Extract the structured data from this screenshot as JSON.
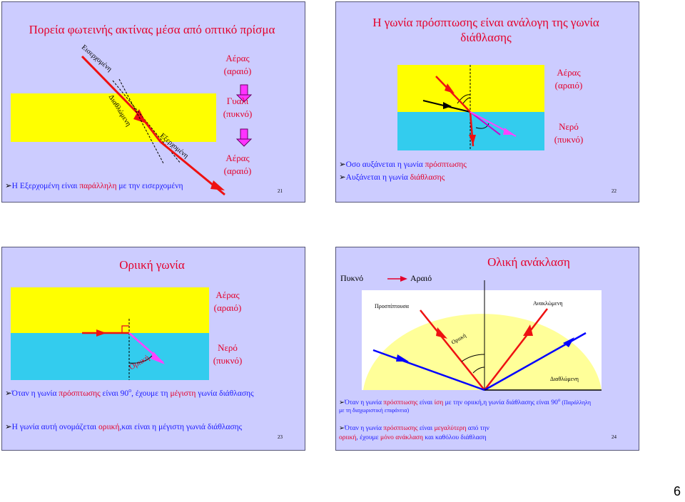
{
  "slide21": {
    "title": "Πορεία φωτεινής ακτίνας μέσα από οπτικό πρίσμα",
    "ray_incoming": "Εισερχομένη",
    "ray_refracted": "Διαθλώμενη",
    "ray_outgoing": "Εξερχομένη",
    "air1_name": "Αέρας",
    "air1_desc": "(αραιό)",
    "glass_name": "Γυαλί",
    "glass_desc": "(πυκνό)",
    "air2_name": "Αέρας",
    "air2_desc": "(αραιό)",
    "bullet_a": "Η Εξερχομένη είναι ",
    "bullet_b": "παράλληλη",
    "bullet_c": " με την εισερχομένη",
    "number": "21"
  },
  "slide22": {
    "title_line1": "Η γωνία πρόσπτωσης είναι ανάλογη της γωνία",
    "title_line2": "διάθλασης",
    "air_name": "Αέρας",
    "air_desc": "(αραιό)",
    "water_name": "Νερό",
    "water_desc": "(πυκνό)",
    "bullet1_a": "Οσο αυξάνεται η γωνία ",
    "bullet1_b": "πρόσπτωσης",
    "bullet2_a": "Αυξάνεται η γωνία ",
    "bullet2_b": "διάθλασης",
    "number": "22"
  },
  "slide23": {
    "title": "Οριική γωνία",
    "air_name": "Αέρας",
    "air_desc": "(αραιό)",
    "water_name": "Νερό",
    "water_desc": "(πυκνό)",
    "angle_label": "Οριική",
    "bullet1_a": "Όταν η γωνία ",
    "bullet1_b": "πρόσπτωσης",
    "bullet1_c": " είναι 90",
    "bullet1_sup": "ο",
    "bullet1_d": ", έχουμε τη ",
    "bullet1_e": "μέγιστη",
    "bullet1_f": " γωνία διάθλασης",
    "bullet2_a": "Η γωνία αυτή ονομάζεται  ",
    "bullet2_b": "οριική",
    "bullet2_c": ",και είναι η μέγιστη γωνιά διάθλασης",
    "number": "23"
  },
  "slide24": {
    "title": "Ολική ανάκλαση",
    "dense": "Πυκνό",
    "sparse": "Αραιό",
    "incident": "Προσπίπτουσα",
    "reflected": "Ανακλώμενη",
    "critical": "Οριική",
    "refracted": "Διαθλώμενη",
    "bullet1_a": "Όταν η γωνία ",
    "bullet1_b": "πρόσπτωσης",
    "bullet1_c": " είναι ",
    "bullet1_d": "ίση",
    "bullet1_e": " με την οριική,η γωνία διάθλασης είναι 90",
    "bullet1_sup": "ο",
    "bullet1_f": " (Παράλληλη",
    "bullet1_line2": "με τη διαχωριστική επιφάνεια)",
    "bullet2_a": "Όταν η γωνία ",
    "bullet2_b": "πρόσπτωσης",
    "bullet2_c": " είναι ",
    "bullet2_d": "μεγαλύτερη",
    "bullet2_e": " από την",
    "bullet2_line2_a": "οριική",
    "bullet2_line2_b": ", έχουμε ",
    "bullet2_line2_c": "μόνο ανάκλαση",
    "bullet2_line2_d": " και καθόλου διάθλαση",
    "number": "24"
  },
  "page_number": "6",
  "colors": {
    "slide_bg": "#ccccff",
    "yellow": "#ffff00",
    "cyan": "#33ccee",
    "red_text": "#e4002b",
    "ray_red": "#ee1111",
    "ray_magenta": "#ff44ff",
    "ray_blue": "#0000ff"
  }
}
